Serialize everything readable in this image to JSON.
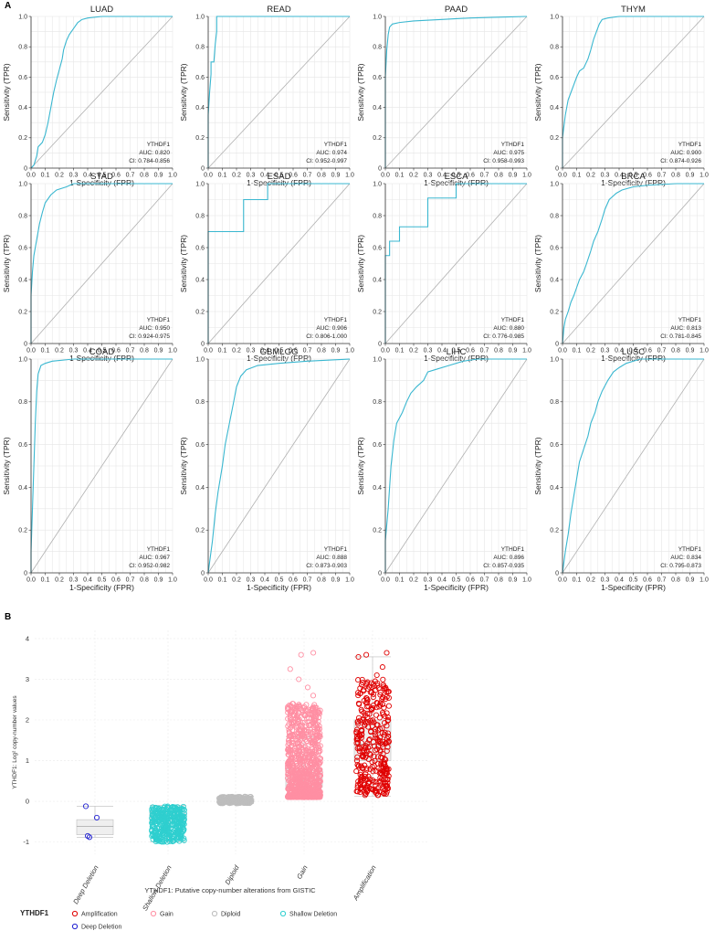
{
  "panel_a_label": "A",
  "panel_b_label": "B",
  "chart_data": [
    {
      "type": "line",
      "panel": "A",
      "title": "LUAD",
      "xlabel": "1-Specificity (FPR)",
      "ylabel": "Sensitivity (TPR)",
      "xlim": [
        0,
        1
      ],
      "ylim": [
        0,
        1
      ],
      "xticks": [
        "0.0",
        "0.1",
        "0.2",
        "0.3",
        "0.4",
        "0.5",
        "0.6",
        "0.7",
        "0.8",
        "0.9",
        "1.0"
      ],
      "yticks": [
        "0",
        "0.2",
        "0.4",
        "0.6",
        "0.8",
        "1.0"
      ],
      "gene": "YTHDF1",
      "auc_label": "AUC: 0.820",
      "ci_label": "CI: 0.784-0.856",
      "roc": [
        [
          0,
          0
        ],
        [
          0.02,
          0.02
        ],
        [
          0.04,
          0.08
        ],
        [
          0.05,
          0.14
        ],
        [
          0.08,
          0.17
        ],
        [
          0.1,
          0.22
        ],
        [
          0.12,
          0.3
        ],
        [
          0.14,
          0.4
        ],
        [
          0.16,
          0.5
        ],
        [
          0.18,
          0.58
        ],
        [
          0.2,
          0.65
        ],
        [
          0.22,
          0.72
        ],
        [
          0.23,
          0.78
        ],
        [
          0.25,
          0.84
        ],
        [
          0.27,
          0.88
        ],
        [
          0.3,
          0.92
        ],
        [
          0.33,
          0.96
        ],
        [
          0.36,
          0.98
        ],
        [
          0.4,
          0.99
        ],
        [
          0.5,
          1
        ],
        [
          1,
          1
        ]
      ]
    },
    {
      "type": "line",
      "panel": "A",
      "title": "READ",
      "xlabel": "1-Specificity (FPR)",
      "ylabel": "Sensitivity (TPR)",
      "xlim": [
        0,
        1
      ],
      "ylim": [
        0,
        1
      ],
      "xticks": [
        "0.0",
        "0.1",
        "0.2",
        "0.3",
        "0.4",
        "0.5",
        "0.6",
        "0.7",
        "0.8",
        "0.9",
        "1.0"
      ],
      "yticks": [
        "0",
        "0.2",
        "0.4",
        "0.6",
        "0.8",
        "1.0"
      ],
      "gene": "YTHDF1",
      "auc_label": "AUC: 0.974",
      "ci_label": "CI: 0.952-0.997",
      "roc": [
        [
          0,
          0
        ],
        [
          0,
          0.35
        ],
        [
          0.01,
          0.5
        ],
        [
          0.02,
          0.62
        ],
        [
          0.02,
          0.7
        ],
        [
          0.04,
          0.7
        ],
        [
          0.05,
          0.82
        ],
        [
          0.06,
          0.9
        ],
        [
          0.06,
          1
        ],
        [
          1,
          1
        ]
      ]
    },
    {
      "type": "line",
      "panel": "A",
      "title": "PAAD",
      "xlabel": "1-Specificity (FPR)",
      "ylabel": "Sensitivity (TPR)",
      "xlim": [
        0,
        1
      ],
      "ylim": [
        0,
        1
      ],
      "xticks": [
        "0.0",
        "0.1",
        "0.2",
        "0.3",
        "0.4",
        "0.5",
        "0.6",
        "0.7",
        "0.8",
        "0.9",
        "1.0"
      ],
      "yticks": [
        "0",
        "0.2",
        "0.4",
        "0.6",
        "0.8",
        "1.0"
      ],
      "gene": "YTHDF1",
      "auc_label": "AUC: 0.975",
      "ci_label": "CI: 0.958-0.993",
      "roc": [
        [
          0,
          0
        ],
        [
          0,
          0.6
        ],
        [
          0.01,
          0.78
        ],
        [
          0.02,
          0.88
        ],
        [
          0.03,
          0.93
        ],
        [
          0.05,
          0.95
        ],
        [
          0.1,
          0.96
        ],
        [
          0.2,
          0.97
        ],
        [
          0.4,
          0.98
        ],
        [
          0.6,
          0.99
        ],
        [
          0.8,
          0.995
        ],
        [
          1,
          1
        ]
      ]
    },
    {
      "type": "line",
      "panel": "A",
      "title": "THYM",
      "xlabel": "1-Specificity (FPR)",
      "ylabel": "Sensitivity (TPR)",
      "xlim": [
        0,
        1
      ],
      "ylim": [
        0,
        1
      ],
      "xticks": [
        "0.0",
        "0.1",
        "0.2",
        "0.3",
        "0.4",
        "0.5",
        "0.6",
        "0.7",
        "0.8",
        "0.9",
        "1.0"
      ],
      "yticks": [
        "0",
        "0.2",
        "0.4",
        "0.6",
        "0.8",
        "1.0"
      ],
      "gene": "YTHDF1",
      "auc_label": "AUC: 0.900",
      "ci_label": "CI: 0.874-0.926",
      "roc": [
        [
          0,
          0
        ],
        [
          0,
          0.2
        ],
        [
          0.02,
          0.35
        ],
        [
          0.04,
          0.45
        ],
        [
          0.06,
          0.5
        ],
        [
          0.08,
          0.55
        ],
        [
          0.1,
          0.6
        ],
        [
          0.12,
          0.64
        ],
        [
          0.15,
          0.66
        ],
        [
          0.18,
          0.72
        ],
        [
          0.2,
          0.78
        ],
        [
          0.22,
          0.85
        ],
        [
          0.24,
          0.9
        ],
        [
          0.26,
          0.95
        ],
        [
          0.28,
          0.98
        ],
        [
          0.32,
          0.99
        ],
        [
          0.4,
          1
        ],
        [
          1,
          1
        ]
      ]
    },
    {
      "type": "line",
      "panel": "A",
      "title": "STAD",
      "xlabel": "1-Specificity (FPR)",
      "ylabel": "Sensitivity (TPR)",
      "xlim": [
        0,
        1
      ],
      "ylim": [
        0,
        1
      ],
      "xticks": [
        "0.0",
        "0.1",
        "0.2",
        "0.3",
        "0.4",
        "0.5",
        "0.6",
        "0.7",
        "0.8",
        "0.9",
        "1.0"
      ],
      "yticks": [
        "0",
        "0.2",
        "0.4",
        "0.6",
        "0.8",
        "1.0"
      ],
      "gene": "YTHDF1",
      "auc_label": "AUC: 0.950",
      "ci_label": "CI: 0.924-0.975",
      "roc": [
        [
          0,
          0
        ],
        [
          0,
          0.3
        ],
        [
          0.01,
          0.45
        ],
        [
          0.02,
          0.55
        ],
        [
          0.04,
          0.65
        ],
        [
          0.06,
          0.75
        ],
        [
          0.08,
          0.82
        ],
        [
          0.1,
          0.88
        ],
        [
          0.14,
          0.93
        ],
        [
          0.18,
          0.96
        ],
        [
          0.25,
          0.98
        ],
        [
          0.3,
          1
        ],
        [
          1,
          1
        ]
      ]
    },
    {
      "type": "line",
      "panel": "A",
      "title": "ESAD",
      "xlabel": "1-Specificity (FPR)",
      "ylabel": "Sensitivity (TPR)",
      "xlim": [
        0,
        1
      ],
      "ylim": [
        0,
        1
      ],
      "xticks": [
        "0.0",
        "0.1",
        "0.2",
        "0.3",
        "0.4",
        "0.5",
        "0.6",
        "0.7",
        "0.8",
        "0.9",
        "1.0"
      ],
      "yticks": [
        "0",
        "0.2",
        "0.4",
        "0.6",
        "0.8",
        "1.0"
      ],
      "gene": "YTHDF1",
      "auc_label": "AUC: 0.906",
      "ci_label": "CI: 0.806-1.000",
      "roc": [
        [
          0,
          0
        ],
        [
          0,
          0.7
        ],
        [
          0.25,
          0.7
        ],
        [
          0.25,
          0.9
        ],
        [
          0.42,
          0.9
        ],
        [
          0.42,
          1
        ],
        [
          1,
          1
        ]
      ]
    },
    {
      "type": "line",
      "panel": "A",
      "title": "ESCA",
      "xlabel": "1-Specificity (FPR)",
      "ylabel": "Sensitivity (TPR)",
      "xlim": [
        0,
        1
      ],
      "ylim": [
        0,
        1
      ],
      "xticks": [
        "0.0",
        "0.1",
        "0.2",
        "0.3",
        "0.4",
        "0.5",
        "0.6",
        "0.7",
        "0.8",
        "0.9",
        "1.0"
      ],
      "yticks": [
        "0",
        "0.2",
        "0.4",
        "0.6",
        "0.8",
        "1.0"
      ],
      "gene": "YTHDF1",
      "auc_label": "AUC: 0.880",
      "ci_label": "CI: 0.776-0.985",
      "roc": [
        [
          0,
          0
        ],
        [
          0,
          0.55
        ],
        [
          0.03,
          0.55
        ],
        [
          0.03,
          0.64
        ],
        [
          0.1,
          0.64
        ],
        [
          0.1,
          0.73
        ],
        [
          0.3,
          0.73
        ],
        [
          0.3,
          0.91
        ],
        [
          0.5,
          0.91
        ],
        [
          0.5,
          1
        ],
        [
          1,
          1
        ]
      ]
    },
    {
      "type": "line",
      "panel": "A",
      "title": "BRCA",
      "xlabel": "1-Specificity (FPR)",
      "ylabel": "Sensitivity (TPR)",
      "xlim": [
        0,
        1
      ],
      "ylim": [
        0,
        1
      ],
      "xticks": [
        "0.0",
        "0.1",
        "0.2",
        "0.3",
        "0.4",
        "0.5",
        "0.6",
        "0.7",
        "0.8",
        "0.9",
        "1.0"
      ],
      "yticks": [
        "0",
        "0.2",
        "0.4",
        "0.6",
        "0.8",
        "1.0"
      ],
      "gene": "YTHDF1",
      "auc_label": "AUC: 0.813",
      "ci_label": "CI: 0.781-0.845",
      "roc": [
        [
          0,
          0
        ],
        [
          0.01,
          0.1
        ],
        [
          0.02,
          0.15
        ],
        [
          0.04,
          0.2
        ],
        [
          0.06,
          0.26
        ],
        [
          0.08,
          0.3
        ],
        [
          0.1,
          0.35
        ],
        [
          0.12,
          0.4
        ],
        [
          0.15,
          0.45
        ],
        [
          0.17,
          0.5
        ],
        [
          0.2,
          0.58
        ],
        [
          0.22,
          0.64
        ],
        [
          0.25,
          0.7
        ],
        [
          0.28,
          0.78
        ],
        [
          0.3,
          0.84
        ],
        [
          0.33,
          0.9
        ],
        [
          0.38,
          0.94
        ],
        [
          0.42,
          0.96
        ],
        [
          0.5,
          0.98
        ],
        [
          0.6,
          0.99
        ],
        [
          0.8,
          1
        ],
        [
          1,
          1
        ]
      ]
    },
    {
      "type": "line",
      "panel": "A",
      "title": "COAD",
      "xlabel": "1-Specificity (FPR)",
      "ylabel": "Sensitivity (TPR)",
      "xlim": [
        0,
        1
      ],
      "ylim": [
        0,
        1
      ],
      "xticks": [
        "0.0",
        "0.1",
        "0.2",
        "0.3",
        "0.4",
        "0.5",
        "0.6",
        "0.7",
        "0.8",
        "0.9",
        "1.0"
      ],
      "yticks": [
        "0",
        "0.2",
        "0.4",
        "0.6",
        "0.8",
        "1.0"
      ],
      "gene": "YTHDF1",
      "auc_label": "AUC: 0.967",
      "ci_label": "CI: 0.952-0.982",
      "roc": [
        [
          0,
          0
        ],
        [
          0,
          0.1
        ],
        [
          0.01,
          0.3
        ],
        [
          0.02,
          0.5
        ],
        [
          0.03,
          0.7
        ],
        [
          0.04,
          0.85
        ],
        [
          0.05,
          0.93
        ],
        [
          0.07,
          0.97
        ],
        [
          0.1,
          0.98
        ],
        [
          0.15,
          0.99
        ],
        [
          0.3,
          1
        ],
        [
          1,
          1
        ]
      ]
    },
    {
      "type": "line",
      "panel": "A",
      "title": "GBMLGG",
      "xlabel": "1-Specificity (FPR)",
      "ylabel": "Sensitivity (TPR)",
      "xlim": [
        0,
        1
      ],
      "ylim": [
        0,
        1
      ],
      "xticks": [
        "0.0",
        "0.1",
        "0.2",
        "0.3",
        "0.4",
        "0.5",
        "0.6",
        "0.7",
        "0.8",
        "0.9",
        "1.0"
      ],
      "yticks": [
        "0",
        "0.2",
        "0.4",
        "0.6",
        "0.8",
        "1.0"
      ],
      "gene": "YTHDF1",
      "auc_label": "AUC: 0.888",
      "ci_label": "CI: 0.873-0.903",
      "roc": [
        [
          0,
          0
        ],
        [
          0.01,
          0.05
        ],
        [
          0.03,
          0.15
        ],
        [
          0.05,
          0.28
        ],
        [
          0.07,
          0.38
        ],
        [
          0.1,
          0.5
        ],
        [
          0.12,
          0.6
        ],
        [
          0.15,
          0.7
        ],
        [
          0.18,
          0.8
        ],
        [
          0.2,
          0.87
        ],
        [
          0.23,
          0.92
        ],
        [
          0.27,
          0.95
        ],
        [
          0.35,
          0.97
        ],
        [
          0.5,
          0.98
        ],
        [
          0.7,
          0.99
        ],
        [
          1,
          1
        ]
      ]
    },
    {
      "type": "line",
      "panel": "A",
      "title": "LIHC",
      "xlabel": "1-Specificity (FPR)",
      "ylabel": "Sensitivity (TPR)",
      "xlim": [
        0,
        1
      ],
      "ylim": [
        0,
        1
      ],
      "xticks": [
        "0.0",
        "0.1",
        "0.2",
        "0.3",
        "0.4",
        "0.5",
        "0.6",
        "0.7",
        "0.8",
        "0.9",
        "1.0"
      ],
      "yticks": [
        "0",
        "0.2",
        "0.4",
        "0.6",
        "0.8",
        "1.0"
      ],
      "gene": "YTHDF1",
      "auc_label": "AUC: 0.896",
      "ci_label": "CI: 0.857-0.935",
      "roc": [
        [
          0,
          0
        ],
        [
          0,
          0.15
        ],
        [
          0.02,
          0.3
        ],
        [
          0.04,
          0.5
        ],
        [
          0.06,
          0.62
        ],
        [
          0.08,
          0.7
        ],
        [
          0.12,
          0.75
        ],
        [
          0.15,
          0.8
        ],
        [
          0.18,
          0.84
        ],
        [
          0.22,
          0.87
        ],
        [
          0.27,
          0.9
        ],
        [
          0.3,
          0.94
        ],
        [
          0.35,
          0.95
        ],
        [
          0.45,
          0.97
        ],
        [
          0.55,
          0.99
        ],
        [
          0.65,
          1
        ],
        [
          1,
          1
        ]
      ]
    },
    {
      "type": "line",
      "panel": "A",
      "title": "LUSC",
      "xlabel": "1-Specificity (FPR)",
      "ylabel": "Sensitivity (TPR)",
      "xlim": [
        0,
        1
      ],
      "ylim": [
        0,
        1
      ],
      "xticks": [
        "0.0",
        "0.1",
        "0.2",
        "0.3",
        "0.4",
        "0.5",
        "0.6",
        "0.7",
        "0.8",
        "0.9",
        "1.0"
      ],
      "yticks": [
        "0",
        "0.2",
        "0.4",
        "0.6",
        "0.8",
        "1.0"
      ],
      "gene": "YTHDF1",
      "auc_label": "AUC: 0.834",
      "ci_label": "CI: 0.795-0.873",
      "roc": [
        [
          0,
          0
        ],
        [
          0.02,
          0.1
        ],
        [
          0.04,
          0.18
        ],
        [
          0.06,
          0.28
        ],
        [
          0.08,
          0.36
        ],
        [
          0.1,
          0.44
        ],
        [
          0.12,
          0.52
        ],
        [
          0.15,
          0.58
        ],
        [
          0.18,
          0.64
        ],
        [
          0.2,
          0.7
        ],
        [
          0.23,
          0.75
        ],
        [
          0.25,
          0.8
        ],
        [
          0.28,
          0.85
        ],
        [
          0.32,
          0.9
        ],
        [
          0.36,
          0.94
        ],
        [
          0.4,
          0.96
        ],
        [
          0.45,
          0.98
        ],
        [
          0.55,
          1
        ],
        [
          1,
          1
        ]
      ]
    },
    {
      "type": "scatter",
      "panel": "B",
      "xlabel": "YTHDF1: Putative copy-number alterations from GISTIC",
      "ylabel": "YTHDF1: Log² copy-number values",
      "ylim": [
        -1.3,
        4.2
      ],
      "yticks": [
        "-1",
        "0",
        "1",
        "2",
        "3",
        "4"
      ],
      "categories": [
        "Deep Deletion",
        "Shallow Deletion",
        "Diploid",
        "Gain",
        "Amplification"
      ],
      "colors": [
        "#1f1fd1",
        "#2fcfcf",
        "#bdbdbd",
        "#ff8fa3",
        "#e00000"
      ],
      "boxes": [
        {
          "min": -0.88,
          "q1": -0.82,
          "median": -0.62,
          "q3": -0.45,
          "max": -0.12
        },
        {
          "min": -1.0,
          "q1": -0.5,
          "median": -0.35,
          "q3": -0.25,
          "max": -0.1
        },
        {
          "min": -0.05,
          "q1": -0.02,
          "median": 0.02,
          "q3": 0.06,
          "max": 0.12
        },
        {
          "min": 0.1,
          "q1": 0.35,
          "median": 0.52,
          "q3": 0.8,
          "max": 1.58
        },
        {
          "min": 0.12,
          "q1": 1.0,
          "median": 1.4,
          "q3": 2.0,
          "max": 3.55
        }
      ],
      "points": [
        [
          -0.12,
          -0.4,
          -0.85,
          -0.88
        ],
        {
          "n": 360,
          "low": -1.0,
          "high": -0.12
        },
        {
          "n": 200,
          "low": -0.05,
          "high": 0.12
        },
        {
          "n": 900,
          "low": 0.1,
          "high": 2.4,
          "outliers": [
            2.6,
            2.8,
            3.0,
            3.25,
            3.6,
            3.65
          ]
        },
        {
          "n": 330,
          "low": 0.15,
          "high": 3.0,
          "outliers": [
            3.1,
            3.3,
            3.55,
            3.6,
            3.65
          ]
        }
      ],
      "legend": {
        "title": "YTHDF1",
        "placement": "bottom",
        "items": [
          "Amplification",
          "Gain",
          "Diploid",
          "Shallow Deletion",
          "Deep Deletion"
        ],
        "colors": [
          "#e00000",
          "#ff8fa3",
          "#bdbdbd",
          "#2fcfcf",
          "#1f1fd1"
        ]
      }
    }
  ]
}
